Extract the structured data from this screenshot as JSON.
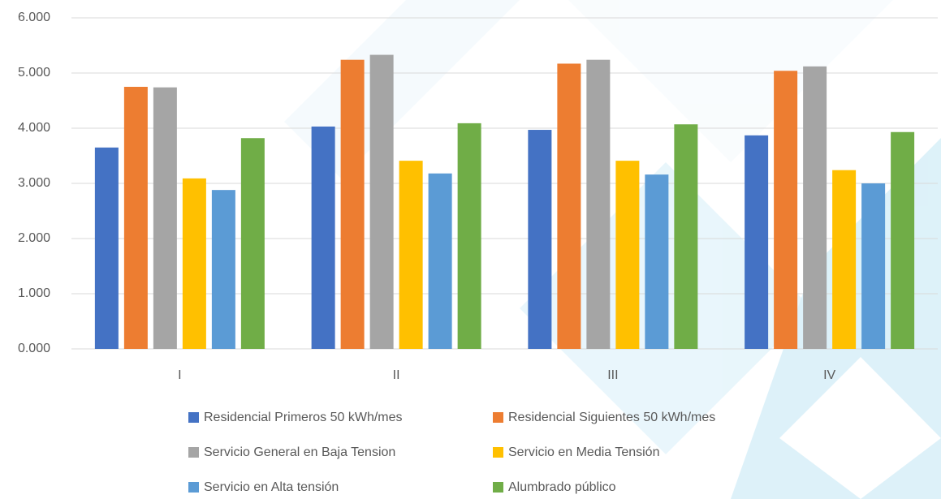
{
  "chart_data": {
    "type": "bar",
    "categories": [
      "I",
      "II",
      "III",
      "IV"
    ],
    "series": [
      {
        "name": "Residencial Primeros 50 kWh/mes",
        "color": "#4472c4",
        "values": [
          3.65,
          4.03,
          3.97,
          3.87
        ]
      },
      {
        "name": "Residencial Siguientes 50 kWh/mes",
        "color": "#ed7d31",
        "values": [
          4.75,
          5.24,
          5.17,
          5.04
        ]
      },
      {
        "name": "Servicio General en Baja Tension",
        "color": "#a5a5a5",
        "values": [
          4.74,
          5.33,
          5.24,
          5.12
        ]
      },
      {
        "name": "Servicio en Media Tensión",
        "color": "#ffc000",
        "values": [
          3.09,
          3.41,
          3.41,
          3.24
        ]
      },
      {
        "name": "Servicio en Alta tensión",
        "color": "#5b9bd5",
        "values": [
          2.88,
          3.18,
          3.16,
          3.0
        ]
      },
      {
        "name": "Alumbrado público",
        "color": "#70ad47",
        "values": [
          3.82,
          4.09,
          4.07,
          3.93
        ]
      }
    ],
    "ylim": [
      0,
      6
    ],
    "yticks": [
      {
        "value": 0,
        "label": "0.000"
      },
      {
        "value": 1,
        "label": "1.000"
      },
      {
        "value": 2,
        "label": "2.000"
      },
      {
        "value": 3,
        "label": "3.000"
      },
      {
        "value": 4,
        "label": "4.000"
      },
      {
        "value": 5,
        "label": "5.000"
      },
      {
        "value": 6,
        "label": "6.000"
      }
    ],
    "grid": true,
    "legend": "bottom"
  }
}
